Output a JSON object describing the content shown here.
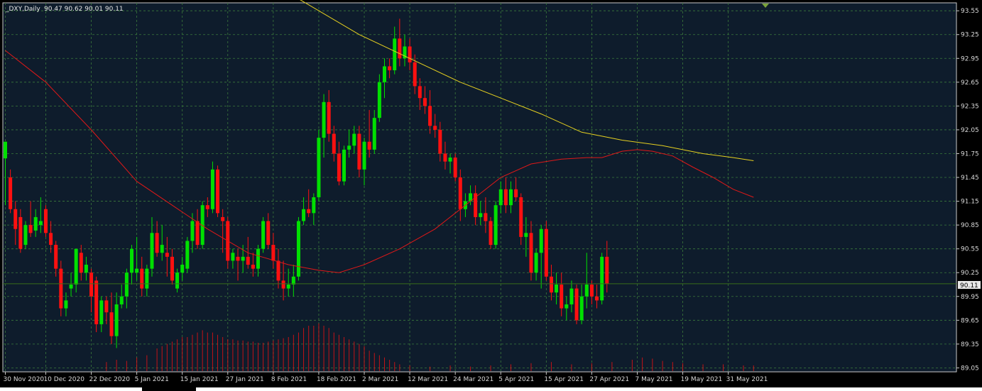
{
  "header": {
    "symbol": "_DXY,Daily",
    "ohlc": "90.47 90.62 90.01 90.11"
  },
  "colors": {
    "background": "#0e1c2c",
    "grid": "#3b7a3b",
    "bull": "#00e000",
    "bear": "#ff1010",
    "ma_fast": "#e01818",
    "ma_slow": "#e6d020",
    "last_price_line": "#3a6e1a",
    "axis_text": "#d8d8d8"
  },
  "chart_data": {
    "type": "candlestick",
    "title": "_DXY,Daily",
    "grid": true,
    "ylim": [
      89.0,
      93.65
    ],
    "yticks": [
      "93.55",
      "93.25",
      "92.95",
      "92.65",
      "92.35",
      "92.05",
      "91.75",
      "91.45",
      "91.15",
      "90.85",
      "90.55",
      "90.25",
      "89.95",
      "89.65",
      "89.35",
      "89.05"
    ],
    "xticks": [
      {
        "label": "30 Nov 2020",
        "index": 0
      },
      {
        "label": "10 Dec 2020",
        "index": 8
      },
      {
        "label": "22 Dec 2020",
        "index": 17
      },
      {
        "label": "5 Jan 2021",
        "index": 26
      },
      {
        "label": "15 Jan 2021",
        "index": 35
      },
      {
        "label": "27 Jan 2021",
        "index": 44
      },
      {
        "label": "8 Feb 2021",
        "index": 53
      },
      {
        "label": "18 Feb 2021",
        "index": 62
      },
      {
        "label": "2 Mar 2021",
        "index": 71
      },
      {
        "label": "12 Mar 2021",
        "index": 80
      },
      {
        "label": "24 Mar 2021",
        "index": 89
      },
      {
        "label": "5 Apr 2021",
        "index": 98
      },
      {
        "label": "15 Apr 2021",
        "index": 107
      },
      {
        "label": "27 Apr 2021",
        "index": 116
      },
      {
        "label": "7 May 2021",
        "index": 125
      },
      {
        "label": "19 May 2021",
        "index": 134
      },
      {
        "label": "31 May 2021",
        "index": 143
      }
    ],
    "last_price": "90.11",
    "ohlc": [
      [
        91.69,
        91.9,
        91.1,
        91.9
      ],
      [
        91.45,
        91.55,
        91.0,
        91.05
      ],
      [
        91.05,
        91.15,
        90.6,
        90.8
      ],
      [
        90.95,
        91.05,
        90.5,
        90.55
      ],
      [
        90.6,
        90.9,
        90.55,
        90.85
      ],
      [
        90.85,
        91.15,
        90.7,
        90.75
      ],
      [
        90.78,
        91.05,
        90.7,
        90.95
      ],
      [
        90.85,
        91.2,
        90.75,
        90.9
      ],
      [
        91.05,
        91.1,
        90.7,
        90.75
      ],
      [
        90.75,
        90.9,
        90.5,
        90.6
      ],
      [
        90.6,
        90.65,
        90.2,
        90.3
      ],
      [
        90.3,
        90.4,
        89.7,
        89.8
      ],
      [
        89.8,
        90.0,
        89.7,
        89.9
      ],
      [
        90.05,
        90.25,
        89.95,
        90.1
      ],
      [
        90.1,
        90.55,
        90.0,
        90.55
      ],
      [
        90.5,
        90.6,
        90.15,
        90.25
      ],
      [
        90.25,
        90.45,
        90.15,
        90.35
      ],
      [
        90.25,
        90.3,
        89.75,
        89.95
      ],
      [
        90.15,
        90.2,
        89.5,
        89.6
      ],
      [
        89.6,
        89.95,
        89.5,
        89.9
      ],
      [
        89.9,
        89.95,
        89.6,
        89.75
      ],
      [
        89.75,
        90.0,
        89.35,
        89.45
      ],
      [
        89.45,
        90.0,
        89.3,
        89.85
      ],
      [
        89.85,
        90.1,
        89.8,
        89.95
      ],
      [
        89.95,
        90.3,
        89.8,
        90.25
      ],
      [
        90.25,
        90.6,
        90.1,
        90.55
      ],
      [
        90.25,
        90.7,
        90.15,
        90.3
      ],
      [
        90.3,
        90.45,
        89.95,
        90.05
      ],
      [
        90.05,
        90.35,
        89.95,
        90.3
      ],
      [
        90.3,
        90.95,
        90.2,
        90.75
      ],
      [
        90.75,
        90.9,
        90.45,
        90.5
      ],
      [
        90.5,
        90.85,
        90.4,
        90.6
      ],
      [
        90.5,
        90.7,
        90.2,
        90.45
      ],
      [
        90.45,
        90.55,
        90.1,
        90.15
      ],
      [
        90.05,
        90.3,
        90.0,
        90.25
      ],
      [
        90.25,
        90.45,
        90.15,
        90.35
      ],
      [
        90.3,
        90.7,
        90.25,
        90.65
      ],
      [
        90.65,
        91.0,
        90.5,
        90.9
      ],
      [
        90.9,
        91.05,
        90.55,
        90.6
      ],
      [
        90.6,
        91.15,
        90.55,
        91.1
      ],
      [
        91.1,
        91.2,
        90.95,
        91.05
      ],
      [
        91.05,
        91.65,
        91.0,
        91.55
      ],
      [
        91.55,
        91.6,
        90.95,
        91.0
      ],
      [
        90.95,
        91.05,
        90.5,
        90.9
      ],
      [
        90.9,
        90.95,
        90.3,
        90.4
      ],
      [
        90.4,
        90.55,
        90.3,
        90.5
      ],
      [
        90.45,
        90.55,
        90.15,
        90.4
      ],
      [
        90.4,
        90.6,
        90.25,
        90.45
      ],
      [
        90.45,
        90.7,
        90.3,
        90.35
      ],
      [
        90.35,
        90.5,
        90.2,
        90.3
      ],
      [
        90.3,
        90.6,
        90.2,
        90.55
      ],
      [
        90.55,
        90.95,
        90.5,
        90.9
      ],
      [
        90.9,
        91.0,
        90.55,
        90.6
      ],
      [
        90.6,
        90.75,
        90.3,
        90.4
      ],
      [
        90.4,
        90.55,
        90.05,
        90.15
      ],
      [
        90.15,
        90.4,
        89.9,
        90.05
      ],
      [
        90.05,
        90.3,
        89.95,
        90.1
      ],
      [
        90.1,
        90.35,
        89.95,
        90.2
      ],
      [
        90.2,
        90.95,
        90.15,
        90.9
      ],
      [
        90.9,
        91.2,
        90.85,
        91.05
      ],
      [
        91.05,
        91.3,
        90.95,
        91.0
      ],
      [
        91.0,
        91.25,
        90.85,
        91.2
      ],
      [
        91.2,
        92.05,
        91.15,
        91.95
      ],
      [
        91.95,
        92.5,
        91.7,
        92.4
      ],
      [
        92.4,
        92.55,
        91.9,
        92.0
      ],
      [
        92.0,
        92.1,
        91.65,
        91.75
      ],
      [
        91.75,
        91.9,
        91.35,
        91.4
      ],
      [
        91.4,
        91.85,
        91.35,
        91.8
      ],
      [
        91.8,
        92.05,
        91.7,
        91.85
      ],
      [
        91.85,
        92.1,
        91.75,
        92.0
      ],
      [
        92.0,
        92.1,
        91.45,
        91.55
      ],
      [
        91.55,
        91.95,
        91.35,
        91.9
      ],
      [
        91.9,
        92.3,
        91.7,
        91.8
      ],
      [
        91.8,
        92.3,
        91.75,
        92.2
      ],
      [
        92.2,
        92.75,
        92.15,
        92.65
      ],
      [
        92.65,
        92.95,
        92.45,
        92.85
      ],
      [
        92.85,
        92.95,
        92.7,
        92.8
      ],
      [
        92.8,
        93.35,
        92.75,
        93.2
      ],
      [
        93.2,
        93.45,
        92.85,
        92.95
      ],
      [
        92.95,
        93.25,
        92.85,
        93.1
      ],
      [
        93.1,
        93.2,
        92.8,
        92.9
      ],
      [
        92.9,
        93.0,
        92.5,
        92.6
      ],
      [
        92.6,
        92.7,
        92.3,
        92.45
      ],
      [
        92.45,
        92.6,
        92.25,
        92.35
      ],
      [
        92.35,
        92.55,
        92.0,
        92.1
      ],
      [
        92.1,
        92.25,
        91.95,
        92.05
      ],
      [
        92.05,
        92.15,
        91.65,
        91.75
      ],
      [
        91.75,
        91.9,
        91.55,
        91.65
      ],
      [
        91.65,
        91.75,
        91.5,
        91.7
      ],
      [
        91.7,
        91.75,
        91.4,
        91.45
      ],
      [
        91.45,
        91.55,
        90.9,
        91.05
      ],
      [
        91.05,
        91.25,
        90.95,
        91.15
      ],
      [
        91.15,
        91.35,
        91.1,
        91.25
      ],
      [
        91.25,
        91.35,
        90.85,
        90.95
      ],
      [
        90.95,
        91.15,
        90.85,
        91.0
      ],
      [
        91.0,
        91.2,
        90.75,
        90.9
      ],
      [
        90.9,
        90.95,
        90.55,
        90.6
      ],
      [
        90.6,
        91.15,
        90.55,
        91.1
      ],
      [
        91.1,
        91.4,
        91.0,
        91.3
      ],
      [
        91.3,
        91.45,
        91.0,
        91.1
      ],
      [
        91.1,
        91.4,
        91.0,
        91.3
      ],
      [
        91.3,
        91.45,
        91.15,
        91.2
      ],
      [
        91.2,
        91.25,
        90.6,
        90.7
      ],
      [
        90.7,
        90.95,
        90.45,
        90.75
      ],
      [
        90.75,
        90.9,
        90.15,
        90.25
      ],
      [
        90.25,
        90.55,
        90.15,
        90.5
      ],
      [
        90.5,
        90.85,
        90.05,
        90.8
      ],
      [
        90.8,
        90.9,
        90.15,
        90.2
      ],
      [
        90.2,
        90.35,
        89.9,
        90.0
      ],
      [
        90.0,
        90.25,
        89.85,
        90.1
      ],
      [
        90.1,
        90.25,
        89.7,
        89.8
      ],
      [
        89.8,
        89.95,
        89.65,
        89.85
      ],
      [
        89.85,
        90.15,
        89.75,
        90.05
      ],
      [
        90.05,
        90.1,
        89.6,
        89.65
      ],
      [
        89.65,
        90.1,
        89.6,
        89.95
      ],
      [
        89.95,
        90.5,
        89.8,
        90.1
      ],
      [
        90.1,
        90.15,
        89.85,
        89.95
      ],
      [
        89.95,
        90.1,
        89.8,
        89.9
      ],
      [
        89.9,
        90.5,
        89.85,
        90.45
      ],
      [
        90.45,
        90.65,
        90.0,
        90.11
      ]
    ],
    "ma_fast": [
      [
        0,
        93.05
      ],
      [
        8,
        92.65
      ],
      [
        17,
        92.05
      ],
      [
        26,
        91.4
      ],
      [
        33,
        91.1
      ],
      [
        40,
        90.8
      ],
      [
        48,
        90.5
      ],
      [
        56,
        90.35
      ],
      [
        62,
        90.28
      ],
      [
        66,
        90.25
      ],
      [
        71,
        90.35
      ],
      [
        78,
        90.55
      ],
      [
        85,
        90.8
      ],
      [
        92,
        91.15
      ],
      [
        98,
        91.45
      ],
      [
        104,
        91.62
      ],
      [
        110,
        91.68
      ],
      [
        115,
        91.7
      ],
      [
        118,
        91.7
      ],
      [
        122,
        91.78
      ],
      [
        125,
        91.8
      ],
      [
        128,
        91.78
      ],
      [
        132,
        91.72
      ],
      [
        136,
        91.58
      ],
      [
        140,
        91.45
      ],
      [
        144,
        91.3
      ],
      [
        148,
        91.2
      ]
    ],
    "ma_slow": [
      [
        58,
        93.7
      ],
      [
        70,
        93.25
      ],
      [
        80,
        92.95
      ],
      [
        90,
        92.65
      ],
      [
        98,
        92.45
      ],
      [
        106,
        92.25
      ],
      [
        114,
        92.02
      ],
      [
        122,
        91.92
      ],
      [
        130,
        91.85
      ],
      [
        138,
        91.75
      ],
      [
        144,
        91.7
      ],
      [
        148,
        91.66
      ]
    ],
    "volume": [
      [
        20,
        0.08
      ],
      [
        22,
        0.1
      ],
      [
        24,
        0.09
      ],
      [
        26,
        0.12
      ],
      [
        28,
        0.14
      ],
      [
        30,
        0.2
      ],
      [
        31,
        0.22
      ],
      [
        32,
        0.24
      ],
      [
        33,
        0.26
      ],
      [
        34,
        0.28
      ],
      [
        35,
        0.3
      ],
      [
        36,
        0.3
      ],
      [
        37,
        0.32
      ],
      [
        38,
        0.34
      ],
      [
        39,
        0.36
      ],
      [
        40,
        0.34
      ],
      [
        41,
        0.34
      ],
      [
        42,
        0.32
      ],
      [
        43,
        0.3
      ],
      [
        44,
        0.28
      ],
      [
        45,
        0.28
      ],
      [
        46,
        0.27
      ],
      [
        47,
        0.27
      ],
      [
        48,
        0.26
      ],
      [
        49,
        0.26
      ],
      [
        50,
        0.25
      ],
      [
        51,
        0.25
      ],
      [
        52,
        0.26
      ],
      [
        53,
        0.27
      ],
      [
        54,
        0.28
      ],
      [
        55,
        0.29
      ],
      [
        56,
        0.3
      ],
      [
        57,
        0.32
      ],
      [
        58,
        0.34
      ],
      [
        59,
        0.38
      ],
      [
        60,
        0.4
      ],
      [
        61,
        0.4
      ],
      [
        62,
        0.42
      ],
      [
        63,
        0.4
      ],
      [
        64,
        0.38
      ],
      [
        65,
        0.34
      ],
      [
        66,
        0.32
      ],
      [
        67,
        0.3
      ],
      [
        68,
        0.28
      ],
      [
        69,
        0.26
      ],
      [
        70,
        0.24
      ],
      [
        71,
        0.22
      ],
      [
        72,
        0.18
      ],
      [
        73,
        0.16
      ],
      [
        74,
        0.14
      ],
      [
        75,
        0.12
      ],
      [
        76,
        0.1
      ],
      [
        77,
        0.08
      ],
      [
        78,
        0.06
      ],
      [
        80,
        0.05
      ],
      [
        84,
        0.04
      ],
      [
        88,
        0.05
      ],
      [
        92,
        0.04
      ],
      [
        96,
        0.05
      ],
      [
        100,
        0.06
      ],
      [
        104,
        0.07
      ],
      [
        108,
        0.08
      ],
      [
        112,
        0.06
      ],
      [
        116,
        0.07
      ],
      [
        120,
        0.08
      ],
      [
        124,
        0.1
      ],
      [
        126,
        0.12
      ],
      [
        128,
        0.11
      ],
      [
        130,
        0.09
      ],
      [
        132,
        0.08
      ],
      [
        134,
        0.07
      ],
      [
        138,
        0.06
      ],
      [
        142,
        0.06
      ],
      [
        146,
        0.05
      ],
      [
        148,
        0.05
      ]
    ]
  }
}
